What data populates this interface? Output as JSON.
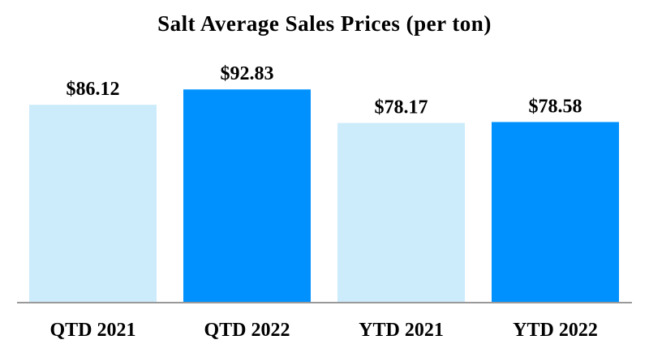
{
  "chart_data": {
    "type": "bar",
    "title": "Salt Average Sales Prices (per ton)",
    "xlabel": "",
    "ylabel": "",
    "categories": [
      "QTD 2021",
      "QTD 2022",
      "YTD 2021",
      "YTD 2022"
    ],
    "values": [
      86.12,
      92.83,
      78.17,
      78.58
    ],
    "data_labels": [
      "$86.12",
      "$92.83",
      "$78.17",
      "$78.58"
    ],
    "bar_colors": [
      "#CCEBFB",
      "#0091FF",
      "#CCEBFB",
      "#0091FF"
    ],
    "axis_color": "#999999",
    "ylim": [
      0,
      100
    ],
    "grid": false,
    "legend": "none"
  }
}
